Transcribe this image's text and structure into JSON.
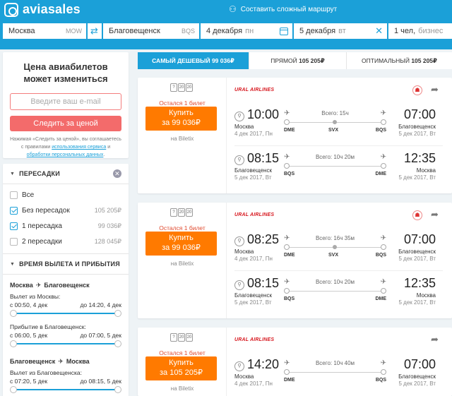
{
  "header": {
    "logo": "aviasales",
    "complex_route": "Составить сложный маршрут",
    "from_city": "Москва",
    "from_code": "MOW",
    "to_city": "Благовещенск",
    "to_code": "BQS",
    "depart_date": "4 декабря",
    "depart_dow": "пн",
    "return_date": "5 декабря",
    "return_dow": "вт",
    "passengers": "1 чел,",
    "class": "бизнес"
  },
  "track": {
    "title": "Цена авиабилетов может измениться",
    "email_placeholder": "Введите ваш e-mail",
    "button": "Следить за ценой",
    "disclaimer_1": "Нажимая «Следить за ценой», вы соглашаетесь с правилами ",
    "disclaimer_link1": "использования сервиса",
    "disclaimer_2": " и ",
    "disclaimer_link2": "обработки персональных данных",
    "disclaimer_3": "."
  },
  "filters": {
    "stops_title": "ПЕРЕСАДКИ",
    "stops": [
      {
        "label": "Все",
        "price": "",
        "checked": false
      },
      {
        "label": "Без пересадок",
        "price": "105 205₽",
        "checked": true
      },
      {
        "label": "1 пересадка",
        "price": "99 036₽",
        "checked": true
      },
      {
        "label": "2 пересадки",
        "price": "128 045₽",
        "checked": false
      }
    ],
    "time_title": "ВРЕМЯ ВЫЛЕТА И ПРИБЫТИЯ",
    "out_from": "Москва",
    "out_to": "Благовещенск",
    "out_dep_label": "Вылет из Москвы:",
    "out_dep_from": "с 00:50, 4 дек",
    "out_dep_to": "до 14:20, 4 дек",
    "out_arr_label": "Прибытие в Благовещенск:",
    "out_arr_from": "с 06:00, 5 дек",
    "out_arr_to": "до 07:00, 5 дек",
    "ret_from": "Благовещенск",
    "ret_to": "Москва",
    "ret_dep_label": "Вылет из Благовещенска:",
    "ret_dep_from": "с 07:20, 5 дек",
    "ret_dep_to": "до 08:15, 5 дек"
  },
  "tabs": [
    {
      "label": "САМЫЙ ДЕШЕВЫЙ",
      "price": "99 036₽"
    },
    {
      "label": "ПРЯМОЙ",
      "price": "105 205₽"
    },
    {
      "label": "ОПТИМАЛЬНЫЙ",
      "price": "105 205₽"
    }
  ],
  "tickets": [
    {
      "bags": [
        "20",
        "20"
      ],
      "last_seat": "Остался 1 билет",
      "buy": "Купить",
      "price": "за 99 036₽",
      "agency": "на Biletix",
      "airline": "URAL AIRLINES",
      "segments": [
        {
          "dep_time": "10:00",
          "dep_city": "Москва",
          "dep_date": "4 дек 2017, Пн",
          "arr_time": "07:00",
          "arr_city": "Благовещенск",
          "arr_date": "5 дек 2017, Вт",
          "duration": "Всего: 15ч",
          "ap_from": "DME",
          "ap_mid": "SVX",
          "ap_to": "BQS"
        },
        {
          "dep_time": "08:15",
          "dep_city": "Благовещенск",
          "dep_date": "5 дек 2017, Вт",
          "arr_time": "12:35",
          "arr_city": "Москва",
          "arr_date": "5 дек 2017, Вт",
          "duration": "Всего: 10ч 20м",
          "ap_from": "BQS",
          "ap_mid": "",
          "ap_to": "DME"
        }
      ]
    },
    {
      "bags": [
        "20",
        "20"
      ],
      "last_seat": "Остался 1 билет",
      "buy": "Купить",
      "price": "за 99 036₽",
      "agency": "на Biletix",
      "airline": "URAL AIRLINES",
      "segments": [
        {
          "dep_time": "08:25",
          "dep_city": "Москва",
          "dep_date": "4 дек 2017, Пн",
          "arr_time": "07:00",
          "arr_city": "Благовещенск",
          "arr_date": "5 дек 2017, Вт",
          "duration": "Всего: 16ч 35м",
          "ap_from": "DME",
          "ap_mid": "SVX",
          "ap_to": "BQS"
        },
        {
          "dep_time": "08:15",
          "dep_city": "Благовещенск",
          "dep_date": "5 дек 2017, Вт",
          "arr_time": "12:35",
          "arr_city": "Москва",
          "arr_date": "5 дек 2017, Вт",
          "duration": "Всего: 10ч 20м",
          "ap_from": "BQS",
          "ap_mid": "",
          "ap_to": "DME"
        }
      ]
    },
    {
      "bags": [
        "20",
        "20"
      ],
      "last_seat": "Остался 1 билет",
      "buy": "Купить",
      "price": "за 105 205₽",
      "agency": "на Biletix",
      "airline": "URAL AIRLINES",
      "segments": [
        {
          "dep_time": "14:20",
          "dep_city": "Москва",
          "dep_date": "4 дек 2017, Пн",
          "arr_time": "07:00",
          "arr_city": "Благовещенск",
          "arr_date": "5 дек 2017, Вт",
          "duration": "Всего: 10ч 40м",
          "ap_from": "DME",
          "ap_mid": "",
          "ap_to": "BQS"
        }
      ]
    }
  ]
}
